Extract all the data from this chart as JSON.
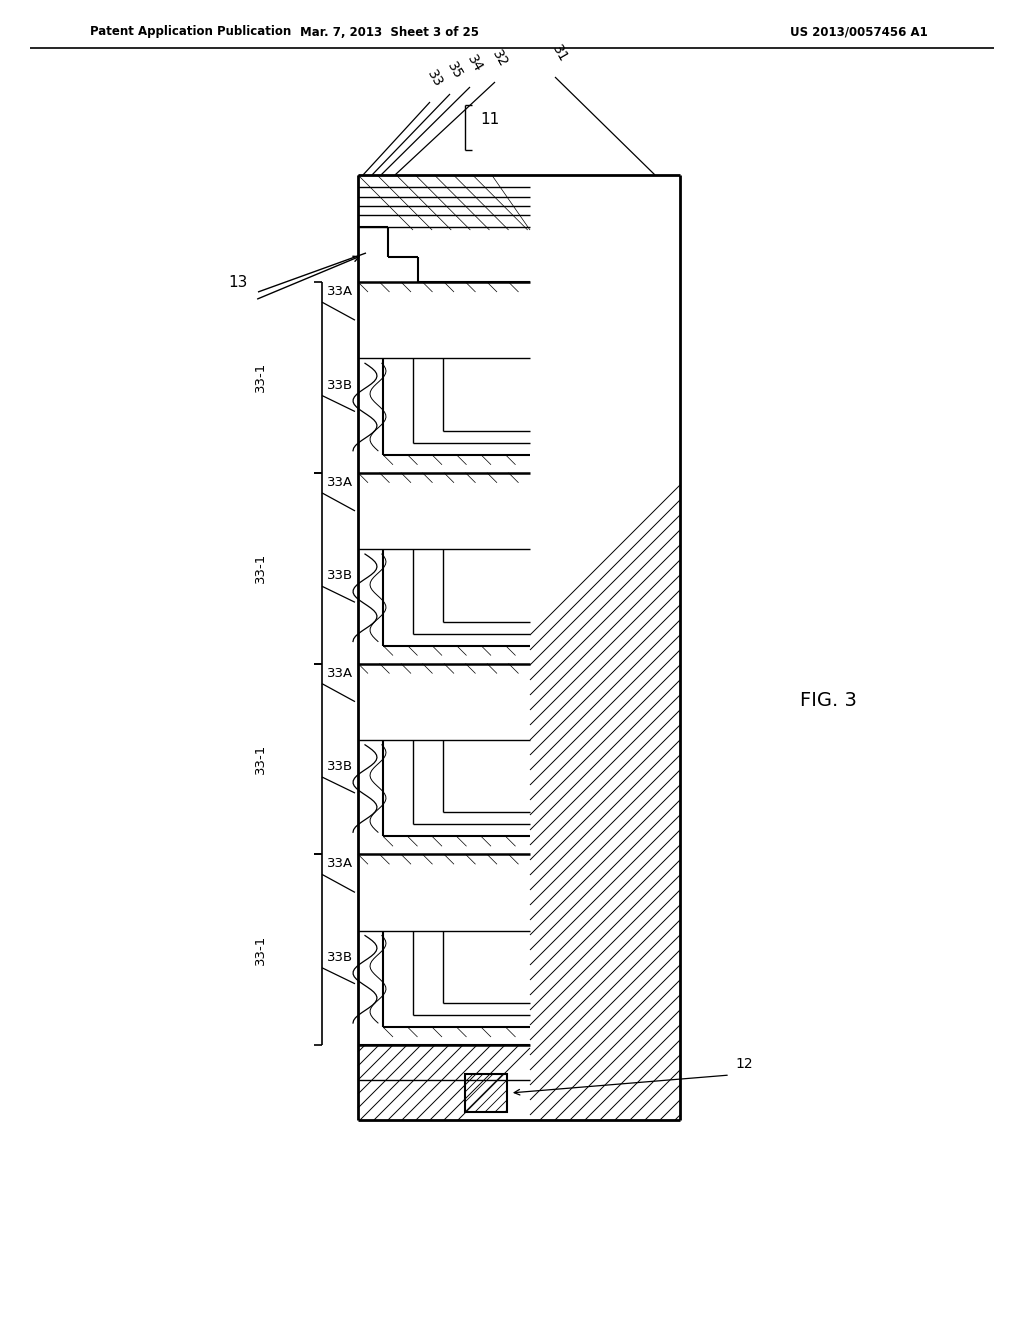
{
  "bg_color": "#ffffff",
  "header_left": "Patent Application Publication",
  "header_mid": "Mar. 7, 2013  Sheet 3 of 25",
  "header_right": "US 2013/0057456 A1",
  "fig_label": "FIG. 3"
}
